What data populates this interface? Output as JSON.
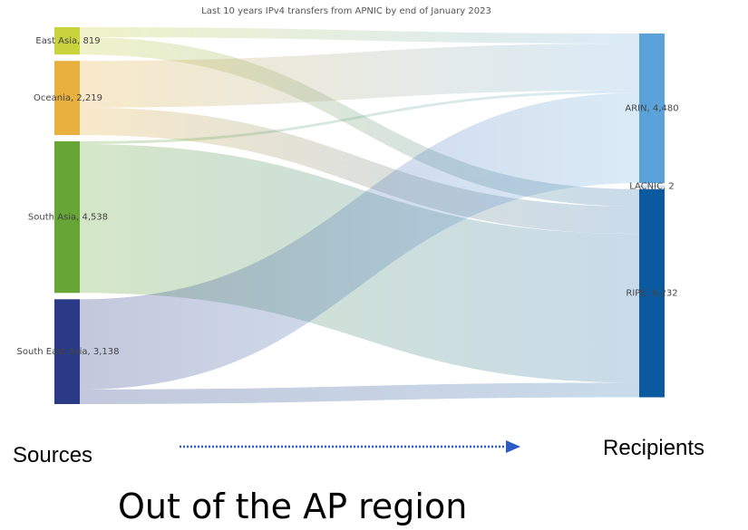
{
  "chart_data": {
    "type": "sankey",
    "title": "Last 10 years IPv4 transfers from APNIC by end of January 2023",
    "nodes": [
      {
        "name": "East Asia",
        "value": 819,
        "label": "East Asia, 819",
        "color": "#c9d43c"
      },
      {
        "name": "Oceania",
        "value": 2219,
        "label": "Oceania, 2,219",
        "color": "#e8b03e"
      },
      {
        "name": "South Asia",
        "value": 4538,
        "label": "South Asia, 4,538",
        "color": "#67a636"
      },
      {
        "name": "South East Asia",
        "value": 3138,
        "label": "South East Asia, 3,138",
        "color": "#2a3a86"
      },
      {
        "name": "ARIN",
        "value": 4480,
        "label": "ARIN, 4,480",
        "color": "#5aa2d9"
      },
      {
        "name": "LACNIC",
        "value": 2,
        "label": "LACNIC, 2",
        "color": "#7fb2dc"
      },
      {
        "name": "RIPE",
        "value": 6232,
        "label": "RIPE, 6,232",
        "color": "#0b5a9f"
      }
    ],
    "links": [
      {
        "source": 0,
        "target": 4,
        "value": 300
      },
      {
        "source": 0,
        "target": 6,
        "value": 519
      },
      {
        "source": 1,
        "target": 4,
        "value": 1400
      },
      {
        "source": 1,
        "target": 6,
        "value": 819
      },
      {
        "source": 2,
        "target": 4,
        "value": 80
      },
      {
        "source": 2,
        "target": 5,
        "value": 2
      },
      {
        "source": 2,
        "target": 6,
        "value": 4456
      },
      {
        "source": 3,
        "target": 4,
        "value": 2700
      },
      {
        "source": 3,
        "target": 6,
        "value": 438
      }
    ],
    "source_label": "Sources",
    "target_label": "Recipients",
    "caption": "Out of the AP region"
  }
}
